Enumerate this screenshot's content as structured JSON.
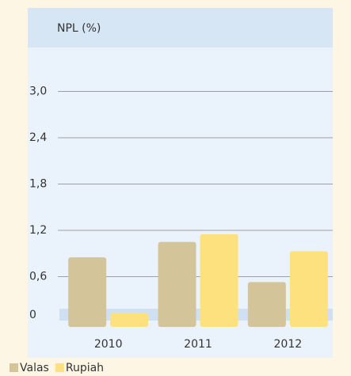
{
  "chart_data": {
    "type": "bar",
    "title": "NPL (%)",
    "categories": [
      "2010",
      "2011",
      "2012"
    ],
    "series": [
      {
        "name": "Valas",
        "color": "#d4c49a",
        "values": [
          0.85,
          1.05,
          0.53
        ]
      },
      {
        "name": "Rupiah",
        "color": "#fde17f",
        "values": [
          0.13,
          1.15,
          0.93
        ]
      }
    ],
    "ylim": [
      0,
      3
    ],
    "yticks": [
      0,
      {
        "value": 0.6,
        "label": "0,6"
      },
      {
        "value": 1.2,
        "label": "1,2"
      },
      {
        "value": 1.8,
        "label": "1,8"
      },
      {
        "value": 2.4,
        "label": "2,4"
      },
      {
        "value": 3,
        "label": "3,0"
      }
    ],
    "grid": true
  }
}
